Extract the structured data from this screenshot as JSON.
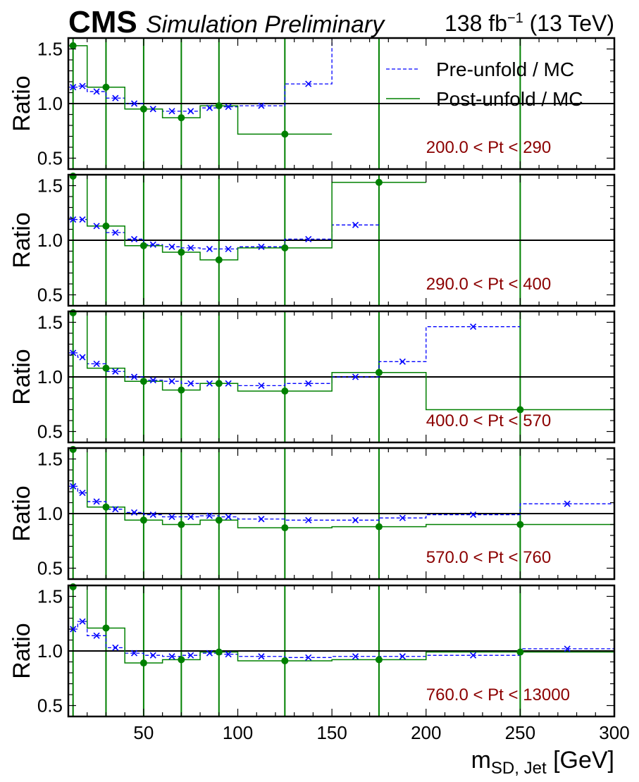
{
  "header": {
    "cms_label": "CMS",
    "sub_label": "Simulation Preliminary",
    "lumi_label": "138 fb",
    "lumi_exp": "−1",
    "energy_label": " (13 TeV)"
  },
  "colors": {
    "pre_unfold": "#0000ff",
    "post_unfold": "#008000",
    "bin_label": "#8b0000",
    "reference_line": "#000000"
  },
  "chart_data": {
    "type": "line",
    "xlabel_main": "m",
    "xlabel_sub": "SD, Jet",
    "xlabel_unit": " [GeV]",
    "ylabel": "Ratio",
    "xlim": [
      10,
      300
    ],
    "ylim": [
      0.4,
      1.6
    ],
    "xticks": [
      50,
      100,
      150,
      200,
      250,
      300
    ],
    "yticks": [
      0.5,
      1.0,
      1.5
    ],
    "ytick_labels": [
      "0.5",
      "1.0",
      "1.5"
    ],
    "reference_value": 1.0,
    "bin_edges": [
      10,
      15,
      20,
      30,
      40,
      50,
      60,
      70,
      80,
      90,
      100,
      125,
      150,
      175,
      200,
      250,
      300
    ],
    "marker_x": [
      12.5,
      17.5,
      25,
      35,
      45,
      55,
      65,
      75,
      85,
      95,
      112.5,
      137.5,
      162.5,
      187.5,
      225,
      275
    ],
    "post_marker_x": [
      12.5,
      30,
      50,
      70,
      90,
      125,
      175,
      250
    ],
    "legend": [
      {
        "label": "Pre-unfold / MC",
        "style": "dashed",
        "color": "#0000ff"
      },
      {
        "label": "Post-unfold / MC",
        "style": "solid",
        "color": "#008000"
      }
    ],
    "legend_panel": 0,
    "panels": [
      {
        "label": "200.0 < Pt < 290",
        "pre": [
          1.15,
          1.16,
          1.11,
          1.05,
          1.0,
          0.95,
          0.93,
          0.93,
          0.96,
          0.97,
          0.98,
          1.18,
          1.9,
          null,
          null,
          null
        ],
        "post": [
          1.53,
          1.53,
          1.15,
          1.15,
          0.95,
          0.95,
          0.87,
          0.87,
          0.98,
          0.98,
          0.72,
          0.72,
          null,
          null,
          null,
          null
        ],
        "post_marker_y": [
          1.53,
          1.15,
          0.95,
          0.87,
          0.98,
          0.72,
          null,
          null
        ]
      },
      {
        "label": "290.0 < Pt < 400",
        "pre": [
          1.19,
          1.19,
          1.13,
          1.07,
          1.01,
          0.96,
          0.94,
          0.93,
          0.92,
          0.92,
          0.94,
          1.01,
          1.14,
          null,
          null,
          null
        ],
        "post": [
          1.6,
          1.6,
          1.13,
          1.13,
          0.95,
          0.95,
          0.89,
          0.89,
          0.82,
          0.82,
          0.93,
          0.93,
          1.53,
          1.53,
          null,
          null
        ],
        "post_marker_y": [
          1.6,
          1.13,
          0.95,
          0.89,
          0.82,
          0.93,
          1.53,
          null
        ]
      },
      {
        "label": "400.0 < Pt < 570",
        "pre": [
          1.22,
          1.18,
          1.12,
          1.05,
          1.0,
          0.97,
          0.96,
          0.94,
          0.94,
          0.94,
          0.92,
          0.94,
          1.0,
          1.14,
          1.46,
          null
        ],
        "post": [
          1.6,
          1.6,
          1.08,
          1.08,
          0.96,
          0.96,
          0.88,
          0.88,
          0.94,
          0.94,
          0.87,
          0.87,
          1.04,
          1.04,
          0.7,
          0.7
        ],
        "post_marker_y": [
          1.6,
          1.08,
          0.96,
          0.88,
          0.94,
          0.87,
          1.04,
          0.7
        ]
      },
      {
        "label": "570.0 < Pt < 760",
        "pre": [
          1.25,
          1.19,
          1.11,
          1.04,
          1.01,
          0.99,
          0.97,
          0.97,
          0.98,
          0.97,
          0.95,
          0.94,
          0.94,
          0.96,
          0.99,
          1.09
        ],
        "post": [
          1.6,
          1.6,
          1.06,
          1.06,
          0.94,
          0.94,
          0.9,
          0.9,
          0.94,
          0.94,
          0.87,
          0.87,
          0.88,
          0.88,
          0.9,
          0.9
        ],
        "post_marker_y": [
          1.6,
          1.06,
          0.94,
          0.9,
          0.94,
          0.87,
          0.88,
          0.9
        ]
      },
      {
        "label": "760.0 < Pt < 13000",
        "pre": [
          1.2,
          1.27,
          1.14,
          1.03,
          0.98,
          0.96,
          0.95,
          0.96,
          0.98,
          0.97,
          0.95,
          0.94,
          0.95,
          0.95,
          0.96,
          1.02
        ],
        "post": [
          1.6,
          1.6,
          1.21,
          1.21,
          0.89,
          0.89,
          0.92,
          0.92,
          0.99,
          0.99,
          0.91,
          0.91,
          0.92,
          0.92,
          0.99,
          0.99
        ],
        "post_marker_y": [
          1.6,
          1.21,
          0.89,
          0.92,
          0.99,
          0.91,
          0.92,
          0.99
        ]
      }
    ]
  }
}
